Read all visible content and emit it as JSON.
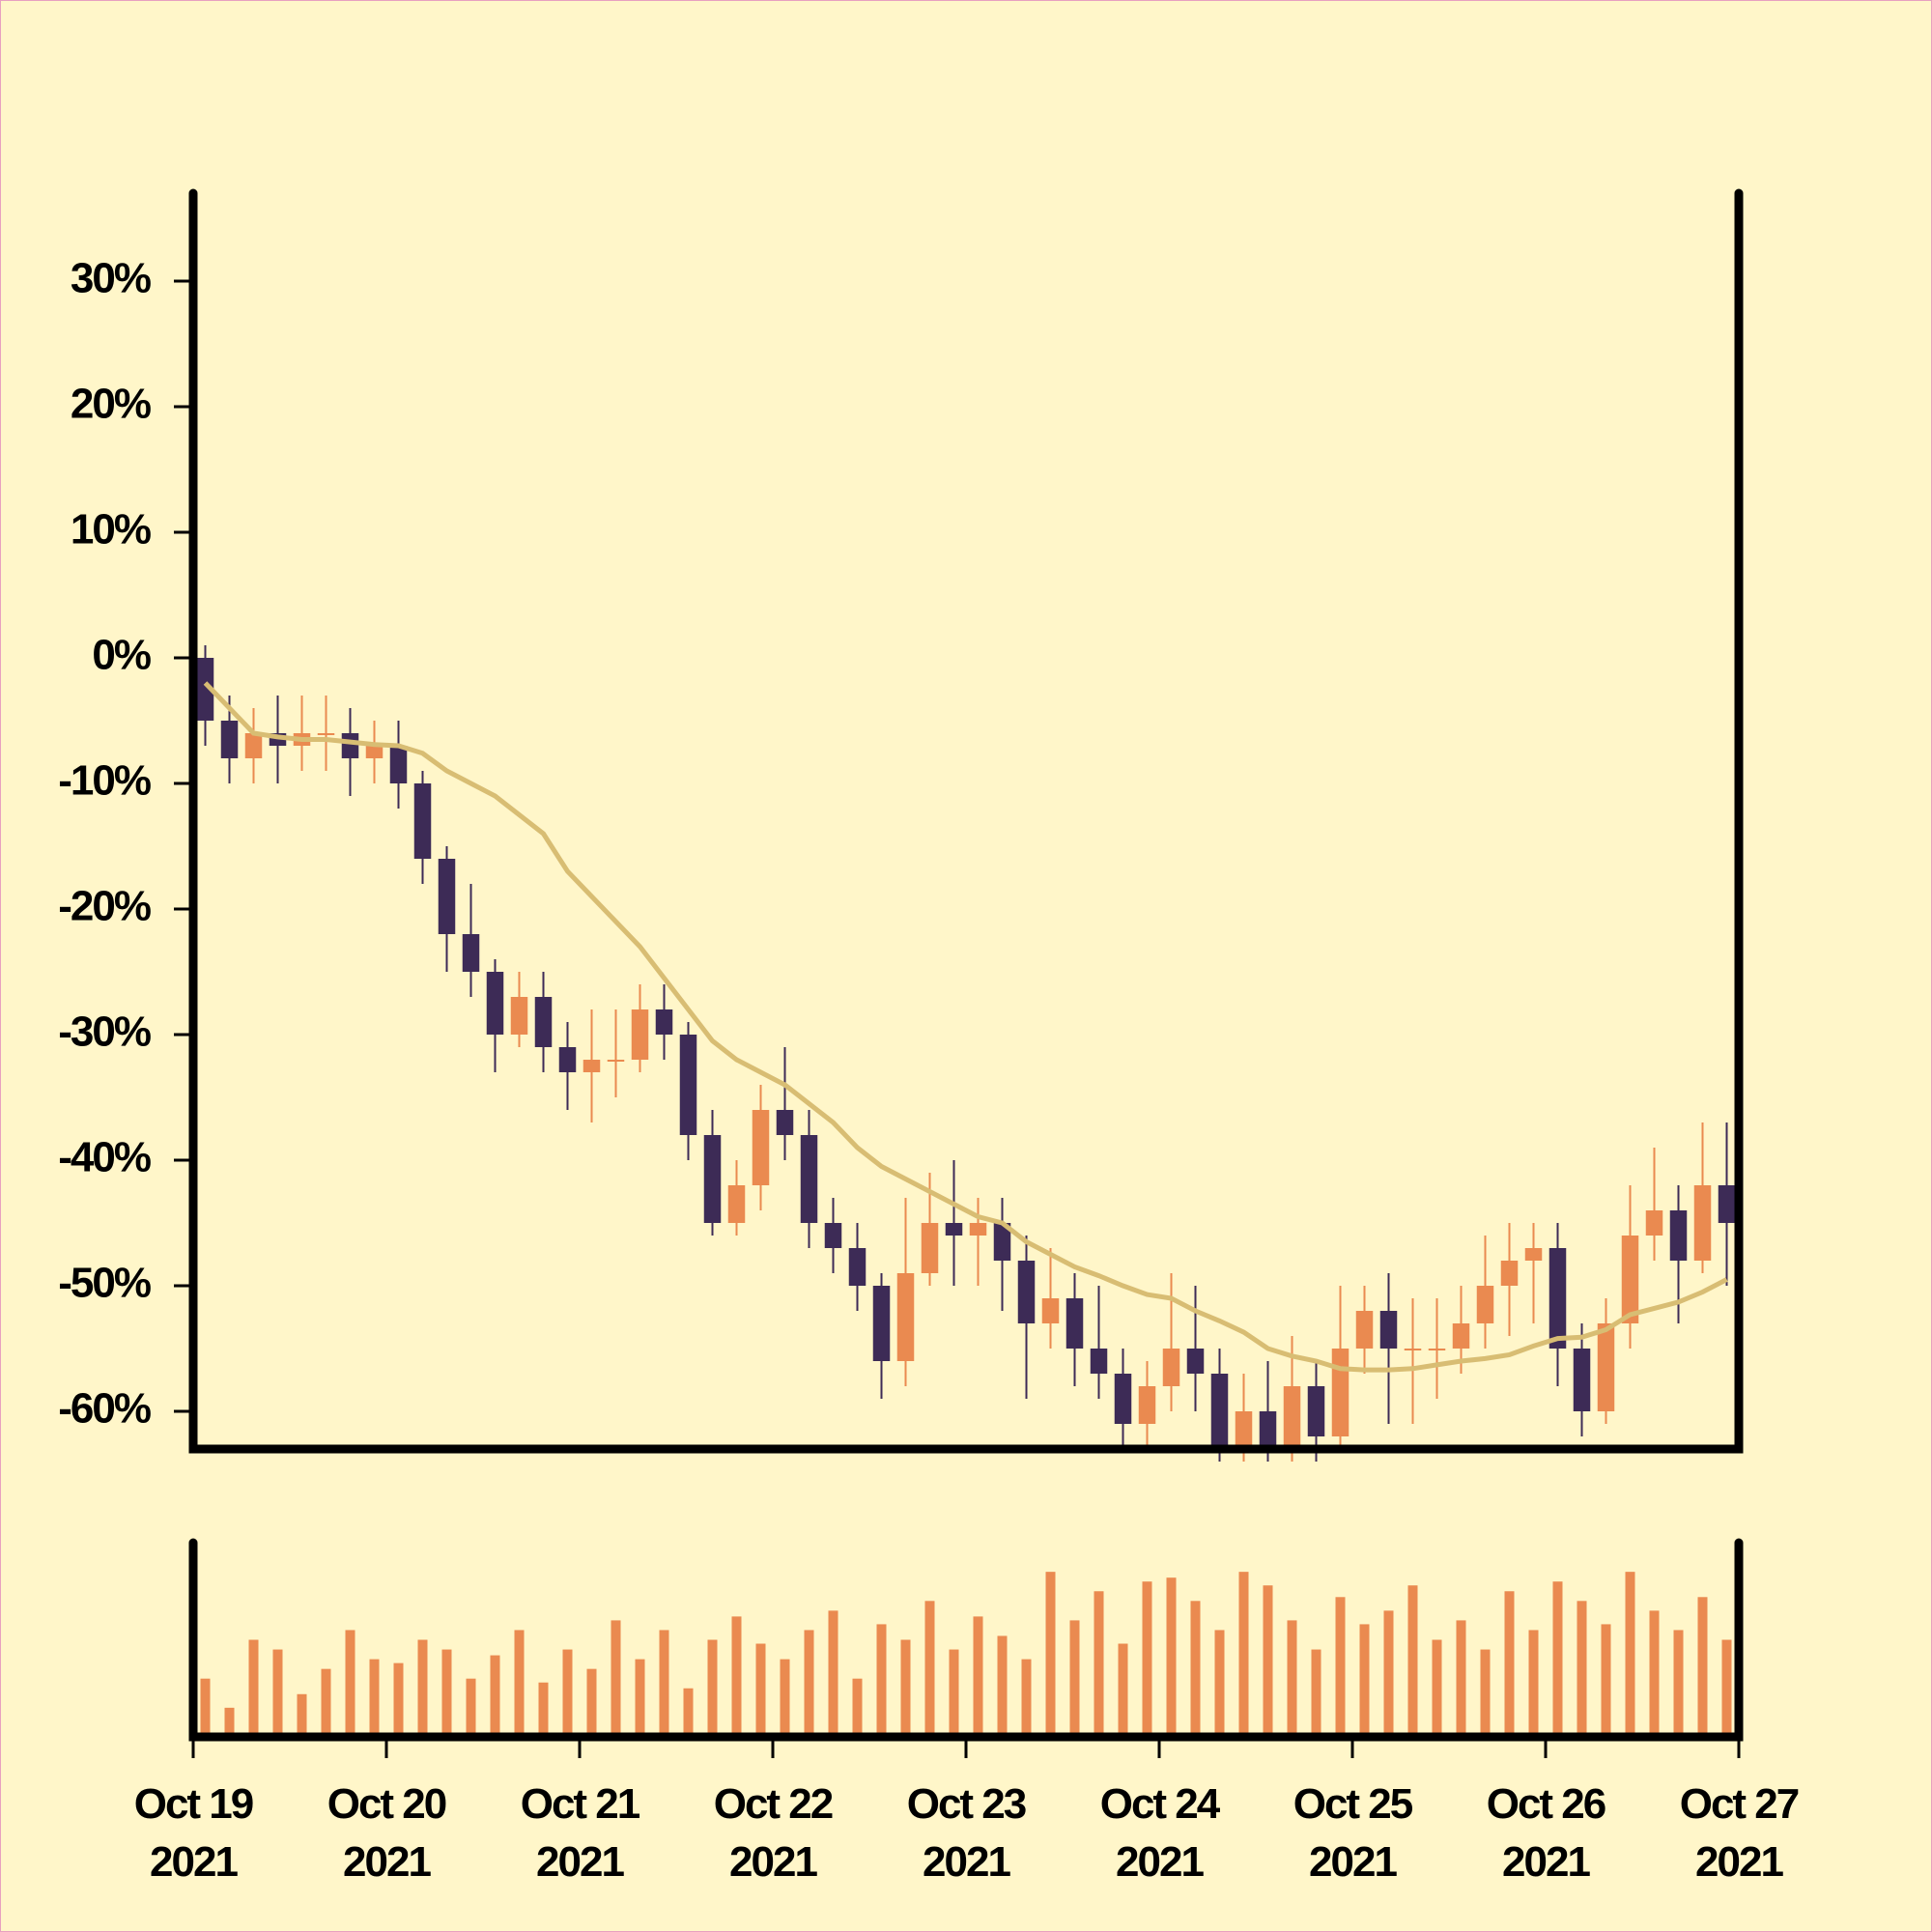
{
  "chart_data": [
    {
      "type": "candlestick",
      "x": [
        "2021-10-19T00:00",
        "2021-10-19T03:00",
        "2021-10-19T06:00",
        "2021-10-19T09:00",
        "2021-10-19T12:00",
        "2021-10-19T15:00",
        "2021-10-19T18:00",
        "2021-10-19T21:00",
        "2021-10-20T00:00",
        "2021-10-20T03:00",
        "2021-10-20T06:00",
        "2021-10-20T09:00",
        "2021-10-20T12:00",
        "2021-10-20T15:00",
        "2021-10-20T18:00",
        "2021-10-20T21:00",
        "2021-10-21T00:00",
        "2021-10-21T03:00",
        "2021-10-21T06:00",
        "2021-10-21T09:00",
        "2021-10-21T12:00",
        "2021-10-21T15:00",
        "2021-10-21T18:00",
        "2021-10-21T21:00",
        "2021-10-22T00:00",
        "2021-10-22T03:00",
        "2021-10-22T06:00",
        "2021-10-22T09:00",
        "2021-10-22T12:00",
        "2021-10-22T15:00",
        "2021-10-22T18:00",
        "2021-10-22T21:00",
        "2021-10-23T00:00",
        "2021-10-23T03:00",
        "2021-10-23T06:00",
        "2021-10-23T09:00",
        "2021-10-23T12:00",
        "2021-10-23T15:00",
        "2021-10-23T18:00",
        "2021-10-23T21:00",
        "2021-10-24T00:00",
        "2021-10-24T03:00",
        "2021-10-24T06:00",
        "2021-10-24T09:00",
        "2021-10-24T12:00",
        "2021-10-24T15:00",
        "2021-10-24T18:00",
        "2021-10-24T21:00",
        "2021-10-25T00:00",
        "2021-10-25T03:00",
        "2021-10-25T06:00",
        "2021-10-25T09:00",
        "2021-10-25T12:00",
        "2021-10-25T15:00",
        "2021-10-25T18:00",
        "2021-10-25T21:00",
        "2021-10-26T00:00",
        "2021-10-26T03:00",
        "2021-10-26T06:00",
        "2021-10-26T09:00",
        "2021-10-26T12:00",
        "2021-10-26T15:00",
        "2021-10-26T18:00",
        "2021-10-26T21:00"
      ],
      "open": [
        0,
        -5,
        -8,
        -6,
        -7,
        -6,
        -6,
        -8,
        -7,
        -10,
        -16,
        -22,
        -25,
        -30,
        -27,
        -31,
        -33,
        -32,
        -32,
        -28,
        -30,
        -38,
        -45,
        -42,
        -36,
        -38,
        -45,
        -47,
        -50,
        -56,
        -49,
        -45,
        -46,
        -45,
        -48,
        -53,
        -51,
        -55,
        -57,
        -61,
        -58,
        -55,
        -57,
        -63,
        -60,
        -63,
        -58,
        -62,
        -55,
        -52,
        -55,
        -55,
        -55,
        -53,
        -50,
        -48,
        -47,
        -55,
        -60,
        -53,
        -46,
        -44,
        -48,
        -42
      ],
      "high": [
        1,
        -3,
        -4,
        -3,
        -3,
        -3,
        -4,
        -5,
        -5,
        -9,
        -15,
        -18,
        -24,
        -25,
        -25,
        -29,
        -28,
        -28,
        -26,
        -26,
        -29,
        -36,
        -40,
        -34,
        -31,
        -36,
        -43,
        -45,
        -49,
        -43,
        -41,
        -40,
        -43,
        -43,
        -46,
        -47,
        -49,
        -50,
        -55,
        -56,
        -49,
        -50,
        -55,
        -57,
        -56,
        -54,
        -56,
        -50,
        -50,
        -49,
        -51,
        -51,
        -50,
        -46,
        -45,
        -45,
        -45,
        -53,
        -51,
        -42,
        -39,
        -42,
        -37,
        -37
      ],
      "low": [
        -7,
        -10,
        -10,
        -10,
        -9,
        -9,
        -11,
        -10,
        -12,
        -18,
        -25,
        -27,
        -33,
        -31,
        -33,
        -36,
        -37,
        -35,
        -33,
        -32,
        -40,
        -46,
        -46,
        -44,
        -40,
        -47,
        -49,
        -52,
        -59,
        -58,
        -50,
        -50,
        -50,
        -52,
        -59,
        -55,
        -58,
        -59,
        -63,
        -63,
        -60,
        -60,
        -64,
        -64,
        -64,
        -64,
        -64,
        -63,
        -57,
        -61,
        -61,
        -59,
        -57,
        -55,
        -54,
        -53,
        -58,
        -62,
        -61,
        -55,
        -48,
        -53,
        -49,
        -50
      ],
      "close": [
        -5,
        -8,
        -6,
        -7,
        -6,
        -6,
        -8,
        -7,
        -10,
        -16,
        -22,
        -25,
        -30,
        -27,
        -31,
        -33,
        -32,
        -32,
        -28,
        -30,
        -38,
        -45,
        -42,
        -36,
        -38,
        -45,
        -47,
        -50,
        -56,
        -49,
        -45,
        -46,
        -45,
        -48,
        -53,
        -51,
        -55,
        -57,
        -61,
        -58,
        -55,
        -57,
        -63,
        -60,
        -63,
        -58,
        -62,
        -55,
        -52,
        -55,
        -55,
        -55,
        -53,
        -50,
        -48,
        -47,
        -55,
        -60,
        -53,
        -46,
        -44,
        -48,
        -42,
        -45
      ],
      "up_color": "#ea8a50",
      "down_color": "#3d2b56",
      "moving_average": {
        "color": "#d8bd73",
        "values": [
          -2,
          -4,
          -6,
          -6.3,
          -6.5,
          -6.5,
          -6.7,
          -6.9,
          -7,
          -7.6,
          -9,
          -10,
          -11,
          -12.5,
          -14,
          -17,
          -19,
          -21,
          -23,
          -25.5,
          -28,
          -30.5,
          -32,
          -33,
          -34,
          -35.5,
          -37,
          -39,
          -40.5,
          -41.5,
          -42.5,
          -43.5,
          -44.5,
          -45,
          -46.5,
          -47.5,
          -48.5,
          -49.2,
          -50,
          -50.7,
          -51,
          -52,
          -52.8,
          -53.7,
          -55,
          -55.6,
          -56,
          -56.6,
          -56.7,
          -56.7,
          -56.6,
          -56.3,
          -56,
          -55.8,
          -55.5,
          -54.8,
          -54.2,
          -54.1,
          -53.5,
          -52.3,
          -51.8,
          -51.3,
          -50.5,
          -49.5
        ]
      },
      "xlim": [
        "2021-10-19T00:00",
        "2021-10-27T00:00"
      ],
      "ylim": [
        -63,
        37
      ],
      "yticks": [
        {
          "value": 30,
          "label": "30%"
        },
        {
          "value": 20,
          "label": "20%"
        },
        {
          "value": 10,
          "label": "10%"
        },
        {
          "value": 0,
          "label": "0%"
        },
        {
          "value": -10,
          "label": "-10%"
        },
        {
          "value": -20,
          "label": "-20%"
        },
        {
          "value": -30,
          "label": "-30%"
        },
        {
          "value": -40,
          "label": "-40%"
        },
        {
          "value": -50,
          "label": "-50%"
        },
        {
          "value": -60,
          "label": "-60%"
        }
      ]
    },
    {
      "type": "bar",
      "x": [
        "2021-10-19T00:00",
        "2021-10-19T03:00",
        "2021-10-19T06:00",
        "2021-10-19T09:00",
        "2021-10-19T12:00",
        "2021-10-19T15:00",
        "2021-10-19T18:00",
        "2021-10-19T21:00",
        "2021-10-20T00:00",
        "2021-10-20T03:00",
        "2021-10-20T06:00",
        "2021-10-20T09:00",
        "2021-10-20T12:00",
        "2021-10-20T15:00",
        "2021-10-20T18:00",
        "2021-10-20T21:00",
        "2021-10-21T00:00",
        "2021-10-21T03:00",
        "2021-10-21T06:00",
        "2021-10-21T09:00",
        "2021-10-21T12:00",
        "2021-10-21T15:00",
        "2021-10-21T18:00",
        "2021-10-21T21:00",
        "2021-10-22T00:00",
        "2021-10-22T03:00",
        "2021-10-22T06:00",
        "2021-10-22T09:00",
        "2021-10-22T12:00",
        "2021-10-22T15:00",
        "2021-10-22T18:00",
        "2021-10-22T21:00",
        "2021-10-23T00:00",
        "2021-10-23T03:00",
        "2021-10-23T06:00",
        "2021-10-23T09:00",
        "2021-10-23T12:00",
        "2021-10-23T15:00",
        "2021-10-23T18:00",
        "2021-10-23T21:00",
        "2021-10-24T00:00",
        "2021-10-24T03:00",
        "2021-10-24T06:00",
        "2021-10-24T09:00",
        "2021-10-24T12:00",
        "2021-10-24T15:00",
        "2021-10-24T18:00",
        "2021-10-24T21:00",
        "2021-10-25T00:00",
        "2021-10-25T03:00",
        "2021-10-25T06:00",
        "2021-10-25T09:00",
        "2021-10-25T12:00",
        "2021-10-25T15:00",
        "2021-10-25T18:00",
        "2021-10-25T21:00",
        "2021-10-26T00:00",
        "2021-10-26T03:00",
        "2021-10-26T06:00",
        "2021-10-26T09:00",
        "2021-10-26T12:00",
        "2021-10-26T15:00",
        "2021-10-26T18:00",
        "2021-10-26T21:00"
      ],
      "values": [
        30,
        15,
        50,
        45,
        22,
        35,
        55,
        40,
        38,
        50,
        45,
        30,
        42,
        55,
        28,
        45,
        35,
        60,
        40,
        55,
        25,
        50,
        62,
        48,
        40,
        55,
        65,
        30,
        58,
        50,
        70,
        45,
        62,
        52,
        40,
        85,
        60,
        75,
        48,
        80,
        82,
        70,
        55,
        85,
        78,
        60,
        45,
        72,
        58,
        65,
        78,
        50,
        60,
        45,
        75,
        55,
        80,
        70,
        58,
        85,
        65,
        55,
        72,
        50
      ],
      "color": "#ea8a50",
      "xlim": [
        "2021-10-19T00:00",
        "2021-10-27T00:00"
      ],
      "ylim": [
        0,
        100
      ],
      "xticks": [
        {
          "value": "2021-10-19T00:00",
          "label": "Oct 19\n2021"
        },
        {
          "value": "2021-10-20T00:00",
          "label": "Oct 20\n2021"
        },
        {
          "value": "2021-10-21T00:00",
          "label": "Oct 21\n2021"
        },
        {
          "value": "2021-10-22T00:00",
          "label": "Oct 22\n2021"
        },
        {
          "value": "2021-10-23T00:00",
          "label": "Oct 23\n2021"
        },
        {
          "value": "2021-10-24T00:00",
          "label": "Oct 24\n2021"
        },
        {
          "value": "2021-10-25T00:00",
          "label": "Oct 25\n2021"
        },
        {
          "value": "2021-10-26T00:00",
          "label": "Oct 26\n2021"
        },
        {
          "value": "2021-10-27T00:00",
          "label": "Oct 27\n2021"
        }
      ]
    }
  ]
}
